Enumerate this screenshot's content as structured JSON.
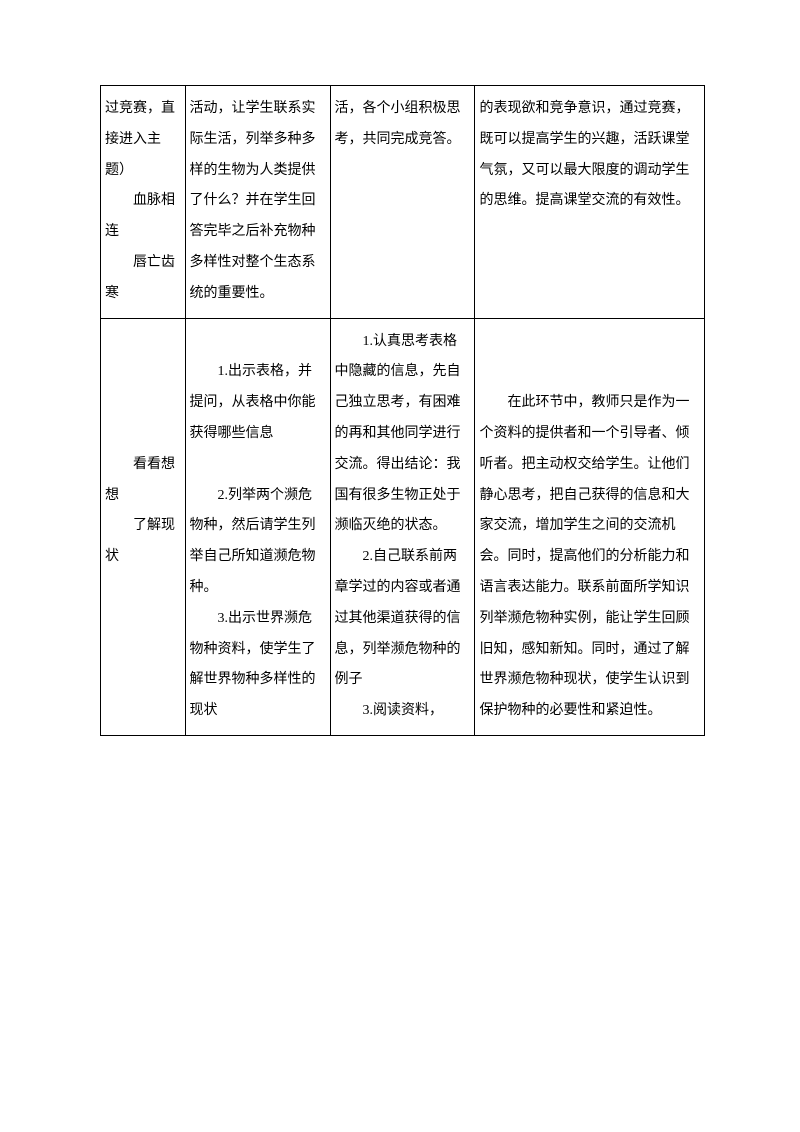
{
  "table": {
    "border_color": "#000000",
    "background_color": "#ffffff",
    "font_family": "SimSun",
    "font_size": 14,
    "line_height": 2.2,
    "columns": [
      {
        "width_pct": 14
      },
      {
        "width_pct": 24
      },
      {
        "width_pct": 24
      },
      {
        "width_pct": 38
      }
    ],
    "rows": [
      {
        "cells": [
          {
            "paragraphs": [
              {
                "text": "过竞赛，直接进入主题）",
                "indent": false
              },
              {
                "text": "血脉相连",
                "indent": true
              },
              {
                "text": "唇亡齿寒",
                "indent": true
              }
            ]
          },
          {
            "paragraphs": [
              {
                "text": "活动，让学生联系实际生活，列举多种多样的生物为人类提供了什么？并在学生回答完毕之后补充物种多样性对整个生态系统的重要性。",
                "indent": false
              }
            ]
          },
          {
            "paragraphs": [
              {
                "text": "活，各个小组积极思考，共同完成竞答。",
                "indent": false
              }
            ]
          },
          {
            "paragraphs": [
              {
                "text": "的表现欲和竞争意识，通过竞赛，既可以提高学生的兴趣，活跃课堂气氛，又可以最大限度的调动学生的思维。提高课堂交流的有效性。",
                "indent": false
              }
            ]
          }
        ]
      },
      {
        "cells": [
          {
            "paragraphs": [
              {
                "text": "",
                "indent": false
              },
              {
                "text": "",
                "indent": false
              },
              {
                "text": "",
                "indent": false
              },
              {
                "text": "",
                "indent": false
              },
              {
                "text": "看看想想",
                "indent": true
              },
              {
                "text": "了解现状",
                "indent": true
              }
            ]
          },
          {
            "paragraphs": [
              {
                "text": "",
                "indent": false
              },
              {
                "text": "1.出示表格，并提问，从表格中你能获得哪些信息",
                "indent": true
              },
              {
                "text": "",
                "indent": false
              },
              {
                "text": "2.列举两个濒危物种，然后请学生列举自己所知道濒危物种。",
                "indent": true
              },
              {
                "text": "3.出示世界濒危物种资料，使学生了解世界物种多样性的现状",
                "indent": true
              }
            ]
          },
          {
            "paragraphs": [
              {
                "text": "1.认真思考表格中隐藏的信息，先自己独立思考，有困难的再和其他同学进行交流。得出结论：我国有很多生物正处于濒临灭绝的状态。",
                "indent": true
              },
              {
                "text": "2.自己联系前两章学过的内容或者通过其他渠道获得的信息，列举濒危物种的例子",
                "indent": true
              },
              {
                "text": "3.阅读资料，",
                "indent": true
              }
            ]
          },
          {
            "paragraphs": [
              {
                "text": "",
                "indent": false
              },
              {
                "text": "",
                "indent": false
              },
              {
                "text": "在此环节中，教师只是作为一个资料的提供者和一个引导者、倾听者。把主动权交给学生。让他们静心思考，把自己获得的信息和大家交流，增加学生之间的交流机会。同时，提高他们的分析能力和语言表达能力。联系前面所学知识列举濒危物种实例，能让学生回顾旧知，感知新知。同时，通过了解世界濒危物种现状，使学生认识到保护物种的必要性和紧迫性。",
                "indent": true
              }
            ]
          }
        ]
      }
    ]
  }
}
